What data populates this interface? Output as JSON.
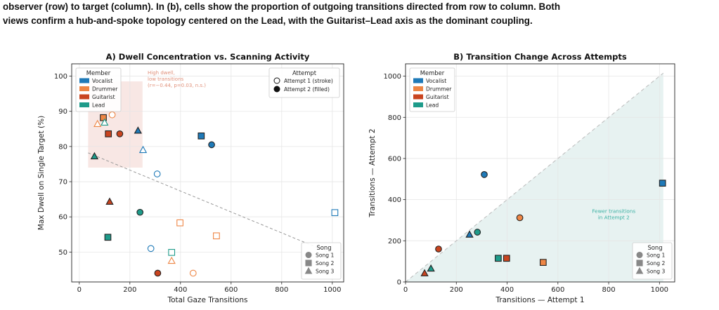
{
  "caption": {
    "line1": "observer (row) to target (column). In (b), cells show the proportion of outgoing transitions directed from row to column. Both",
    "line2": "views confirm a hub-and-spoke topology centered on the Lead, with the Guitarist–Lead axis as the dominant coupling."
  },
  "colors": {
    "Vocalist": "#1f7ab8",
    "Drummer": "#ee8645",
    "Guitarist": "#c9441f",
    "Lead": "#1e9b8a",
    "grid": "#e6e6e6",
    "hint": "#f8e7e4",
    "fewer": "#e7f2f1"
  },
  "chart_data": [
    {
      "type": "scatter",
      "title": "A) Dwell Concentration vs. Scanning Activity",
      "xlabel": "Total Gaze Transitions",
      "ylabel": "Max Dwell on Single Target (%)",
      "xlim": [
        -30,
        1045
      ],
      "ylim": [
        41.5,
        103.5
      ],
      "xticks": [
        0,
        200,
        400,
        600,
        800,
        1000
      ],
      "yticks": [
        50,
        60,
        70,
        80,
        90,
        100
      ],
      "grid": true,
      "trendline": [
        [
          35,
          78.2
        ],
        [
          1000,
          49.5
        ]
      ],
      "annotation": {
        "lines": [
          "High dwell,",
          "low transitions",
          "(r=−0.44, p=0.03, n.s.)"
        ],
        "x": 270,
        "y": 100.5
      },
      "member_legend": {
        "title": "Member",
        "entries": [
          "Vocalist",
          "Drummer",
          "Guitarist",
          "Lead"
        ],
        "placement": "top-left"
      },
      "attempt_legend": {
        "title": "Attempt",
        "entries": [
          "Attempt 1 (stroke)",
          "Attempt 2 (filled)"
        ],
        "placement": "top-right"
      },
      "song_legend": {
        "title": "Song",
        "entries": [
          "Song 1",
          "Song 2",
          "Song 3"
        ],
        "placement": "bottom-right"
      },
      "points": [
        {
          "member": "Drummer",
          "song": 1,
          "attempt": 1,
          "x": 130,
          "y": 89
        },
        {
          "member": "Drummer",
          "song": 2,
          "attempt": 2,
          "x": 95,
          "y": 88.2
        },
        {
          "member": "Lead",
          "song": 3,
          "attempt": 1,
          "x": 100,
          "y": 86.8
        },
        {
          "member": "Drummer",
          "song": 3,
          "attempt": 1,
          "x": 72,
          "y": 86.4
        },
        {
          "member": "Vocalist",
          "song": 3,
          "attempt": 2,
          "x": 232,
          "y": 84.5
        },
        {
          "member": "Guitarist",
          "song": 2,
          "attempt": 2,
          "x": 115,
          "y": 83.6
        },
        {
          "member": "Guitarist",
          "song": 1,
          "attempt": 2,
          "x": 160,
          "y": 83.6
        },
        {
          "member": "Vocalist",
          "song": 2,
          "attempt": 2,
          "x": 482,
          "y": 83
        },
        {
          "member": "Vocalist",
          "song": 1,
          "attempt": 2,
          "x": 523,
          "y": 80.5
        },
        {
          "member": "Vocalist",
          "song": 3,
          "attempt": 1,
          "x": 252,
          "y": 79
        },
        {
          "member": "Lead",
          "song": 3,
          "attempt": 2,
          "x": 60,
          "y": 77.2
        },
        {
          "member": "Vocalist",
          "song": 1,
          "attempt": 1,
          "x": 308,
          "y": 72.2
        },
        {
          "member": "Guitarist",
          "song": 3,
          "attempt": 2,
          "x": 120,
          "y": 64.3
        },
        {
          "member": "Lead",
          "song": 1,
          "attempt": 2,
          "x": 240,
          "y": 61.3
        },
        {
          "member": "Vocalist",
          "song": 2,
          "attempt": 1,
          "x": 1010,
          "y": 61.2
        },
        {
          "member": "Drummer",
          "song": 2,
          "attempt": 1,
          "x": 398,
          "y": 58.3
        },
        {
          "member": "Drummer",
          "song": 2,
          "attempt": 1,
          "x": 542,
          "y": 54.6
        },
        {
          "member": "Lead",
          "song": 2,
          "attempt": 2,
          "x": 113,
          "y": 54.2
        },
        {
          "member": "Vocalist",
          "song": 1,
          "attempt": 1,
          "x": 283,
          "y": 51
        },
        {
          "member": "Lead",
          "song": 2,
          "attempt": 1,
          "x": 365,
          "y": 49.9
        },
        {
          "member": "Drummer",
          "song": 3,
          "attempt": 1,
          "x": 365,
          "y": 47.5
        },
        {
          "member": "Guitarist",
          "song": 1,
          "attempt": 2,
          "x": 310,
          "y": 44
        },
        {
          "member": "Drummer",
          "song": 1,
          "attempt": 1,
          "x": 450,
          "y": 44
        }
      ]
    },
    {
      "type": "scatter",
      "title": "B) Transition Change Across Attempts",
      "xlabel": "Transitions — Attempt 1",
      "ylabel": "Transitions — Attempt 2",
      "xlim": [
        0,
        1060
      ],
      "ylim": [
        0,
        1060
      ],
      "xticks": [
        0,
        200,
        400,
        600,
        800,
        1000
      ],
      "yticks": [
        0,
        200,
        400,
        600,
        800,
        1000
      ],
      "grid": true,
      "diagonal": [
        [
          0,
          0
        ],
        [
          1015,
          1015
        ]
      ],
      "region_label": {
        "lines": [
          "Fewer transitions",
          "in Attempt 2"
        ],
        "x": 820,
        "y": 335
      },
      "member_legend": {
        "title": "Member",
        "entries": [
          "Vocalist",
          "Drummer",
          "Guitarist",
          "Lead"
        ],
        "placement": "top-left"
      },
      "song_legend": {
        "title": "Song",
        "entries": [
          "Song 1",
          "Song 2",
          "Song 3"
        ],
        "placement": "bottom-right"
      },
      "points": [
        {
          "member": "Vocalist",
          "song": 1,
          "x": 310,
          "y": 522
        },
        {
          "member": "Vocalist",
          "song": 2,
          "x": 1012,
          "y": 480
        },
        {
          "member": "Drummer",
          "song": 1,
          "x": 450,
          "y": 312
        },
        {
          "member": "Lead",
          "song": 1,
          "x": 283,
          "y": 242
        },
        {
          "member": "Vocalist",
          "song": 3,
          "x": 252,
          "y": 230
        },
        {
          "member": "Guitarist",
          "song": 1,
          "x": 130,
          "y": 160
        },
        {
          "member": "Lead",
          "song": 2,
          "x": 365,
          "y": 115
        },
        {
          "member": "Guitarist",
          "song": 2,
          "x": 398,
          "y": 115
        },
        {
          "member": "Drummer",
          "song": 2,
          "x": 542,
          "y": 95
        },
        {
          "member": "Lead",
          "song": 3,
          "x": 100,
          "y": 65
        },
        {
          "member": "Guitarist",
          "song": 3,
          "x": 75,
          "y": 42
        }
      ]
    }
  ]
}
